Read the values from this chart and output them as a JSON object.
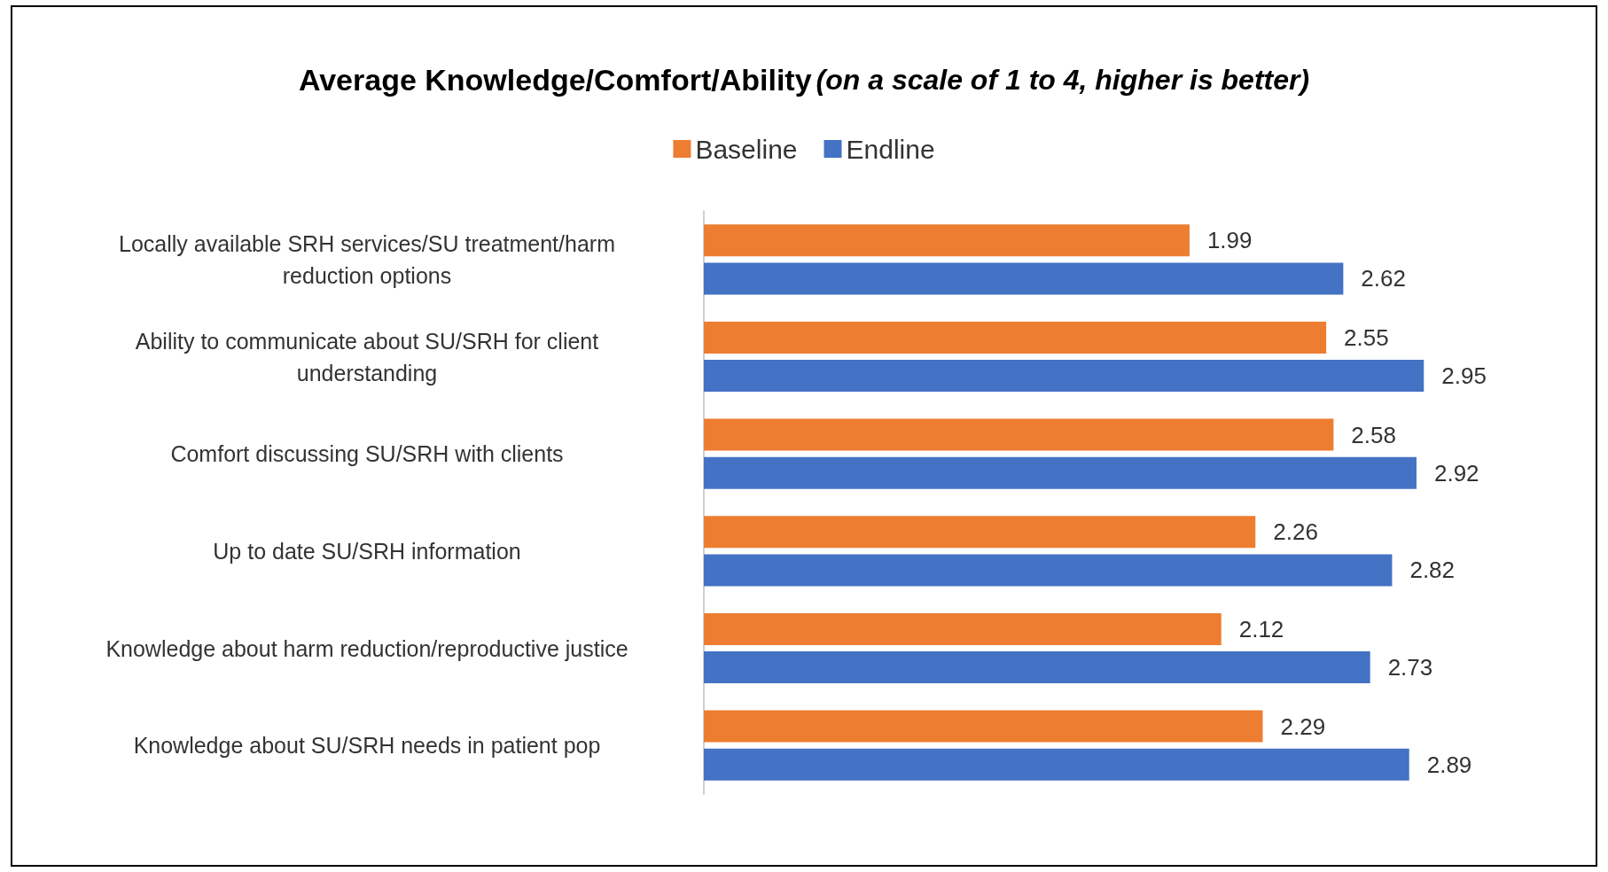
{
  "chart_data": {
    "type": "bar",
    "orientation": "horizontal",
    "title": "Average Knowledge/Comfort/Ability",
    "subtitle": "(on a scale of 1 to 4, higher is better)",
    "categories": [
      "Locally available SRH services/SU treatment/harm reduction options",
      "Ability to communicate about SU/SRH for client understanding",
      "Comfort discussing SU/SRH with clients",
      "Up to date SU/SRH information",
      "Knowledge about harm reduction/reproductive justice",
      "Knowledge about SU/SRH needs in patient pop"
    ],
    "series": [
      {
        "name": "Baseline",
        "color": "#ed7d31",
        "values": [
          1.99,
          2.55,
          2.58,
          2.26,
          2.12,
          2.29
        ]
      },
      {
        "name": "Endline",
        "color": "#4472c4",
        "values": [
          2.62,
          2.95,
          2.92,
          2.82,
          2.73,
          2.89
        ]
      }
    ],
    "data_labels": true,
    "legend": "top"
  }
}
